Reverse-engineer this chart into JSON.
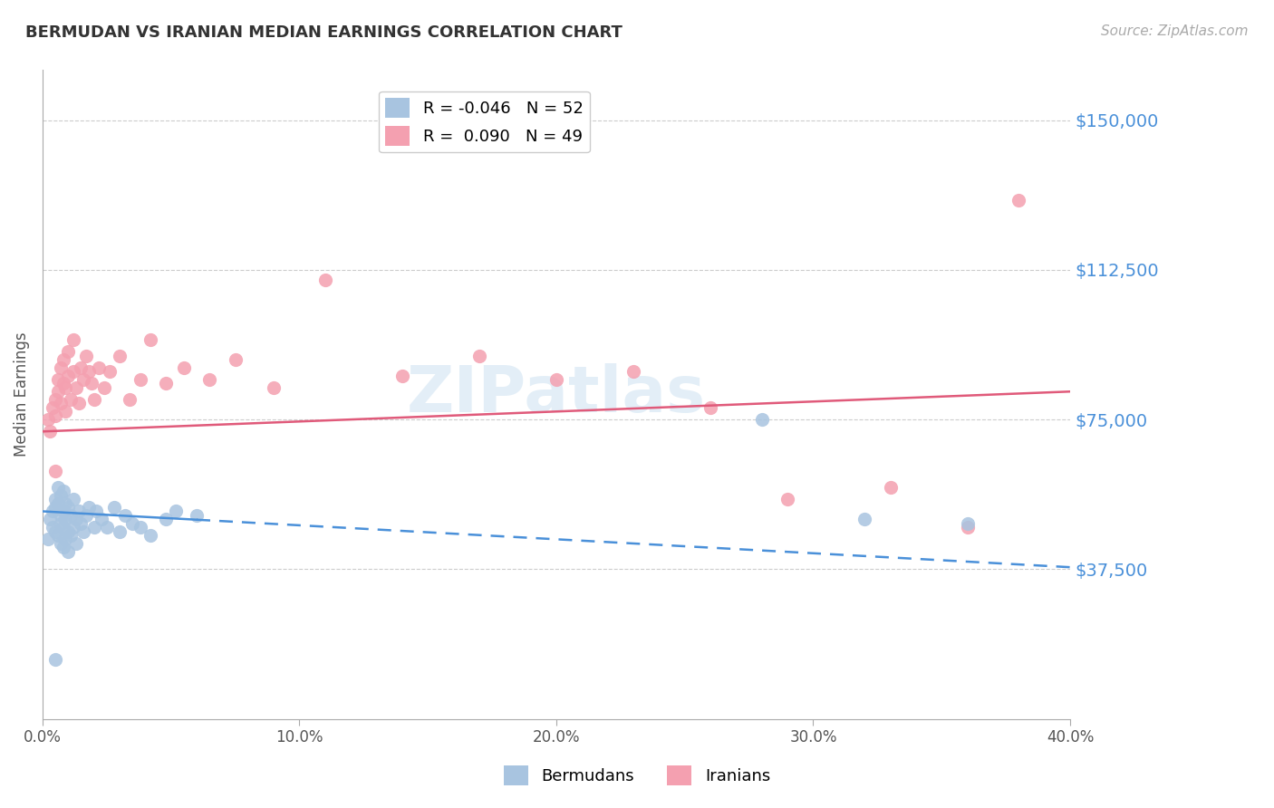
{
  "title": "BERMUDAN VS IRANIAN MEDIAN EARNINGS CORRELATION CHART",
  "source": "Source: ZipAtlas.com",
  "xlabel": "",
  "ylabel": "Median Earnings",
  "xlim": [
    0.0,
    0.4
  ],
  "ylim": [
    0,
    162500
  ],
  "yticks": [
    0,
    37500,
    75000,
    112500,
    150000
  ],
  "ytick_labels": [
    "",
    "$37,500",
    "$75,000",
    "$112,500",
    "$150,000"
  ],
  "xticks": [
    0.0,
    0.1,
    0.2,
    0.3,
    0.4
  ],
  "xtick_labels": [
    "0.0%",
    "10.0%",
    "20.0%",
    "30.0%",
    "40.0%"
  ],
  "bermudans_color": "#a8c4e0",
  "iranians_color": "#f4a0b0",
  "blue_line_color": "#4a90d9",
  "pink_line_color": "#e05a7a",
  "grid_color": "#cccccc",
  "yaxis_label_color": "#4a90d9",
  "legend_R_blue": "-0.046",
  "legend_N_blue": "52",
  "legend_R_pink": "0.090",
  "legend_N_pink": "49",
  "watermark": "ZIPatlas",
  "bermudans_x": [
    0.002,
    0.003,
    0.004,
    0.004,
    0.005,
    0.005,
    0.005,
    0.006,
    0.006,
    0.006,
    0.007,
    0.007,
    0.007,
    0.007,
    0.008,
    0.008,
    0.008,
    0.008,
    0.009,
    0.009,
    0.009,
    0.01,
    0.01,
    0.01,
    0.011,
    0.011,
    0.012,
    0.012,
    0.013,
    0.013,
    0.014,
    0.015,
    0.016,
    0.017,
    0.018,
    0.02,
    0.021,
    0.023,
    0.025,
    0.028,
    0.03,
    0.032,
    0.035,
    0.038,
    0.042,
    0.048,
    0.052,
    0.06,
    0.28,
    0.32,
    0.36,
    0.005
  ],
  "bermudans_y": [
    45000,
    50000,
    48000,
    52000,
    55000,
    47000,
    53000,
    46000,
    54000,
    58000,
    44000,
    49000,
    51000,
    56000,
    43000,
    48000,
    52000,
    57000,
    45000,
    50000,
    54000,
    42000,
    47000,
    53000,
    46000,
    51000,
    48000,
    55000,
    44000,
    50000,
    52000,
    49000,
    47000,
    51000,
    53000,
    48000,
    52000,
    50000,
    48000,
    53000,
    47000,
    51000,
    49000,
    48000,
    46000,
    50000,
    52000,
    51000,
    75000,
    50000,
    49000,
    15000
  ],
  "iranians_x": [
    0.002,
    0.003,
    0.004,
    0.005,
    0.005,
    0.006,
    0.006,
    0.007,
    0.007,
    0.008,
    0.008,
    0.009,
    0.009,
    0.01,
    0.01,
    0.011,
    0.012,
    0.012,
    0.013,
    0.014,
    0.015,
    0.016,
    0.017,
    0.018,
    0.019,
    0.02,
    0.022,
    0.024,
    0.026,
    0.03,
    0.034,
    0.038,
    0.042,
    0.048,
    0.055,
    0.065,
    0.075,
    0.09,
    0.11,
    0.14,
    0.17,
    0.2,
    0.23,
    0.26,
    0.29,
    0.33,
    0.36,
    0.38,
    0.005
  ],
  "iranians_y": [
    75000,
    72000,
    78000,
    80000,
    76000,
    85000,
    82000,
    88000,
    79000,
    84000,
    90000,
    77000,
    83000,
    86000,
    92000,
    80000,
    95000,
    87000,
    83000,
    79000,
    88000,
    85000,
    91000,
    87000,
    84000,
    80000,
    88000,
    83000,
    87000,
    91000,
    80000,
    85000,
    95000,
    84000,
    88000,
    85000,
    90000,
    83000,
    110000,
    86000,
    91000,
    85000,
    87000,
    78000,
    55000,
    58000,
    48000,
    130000,
    62000
  ]
}
